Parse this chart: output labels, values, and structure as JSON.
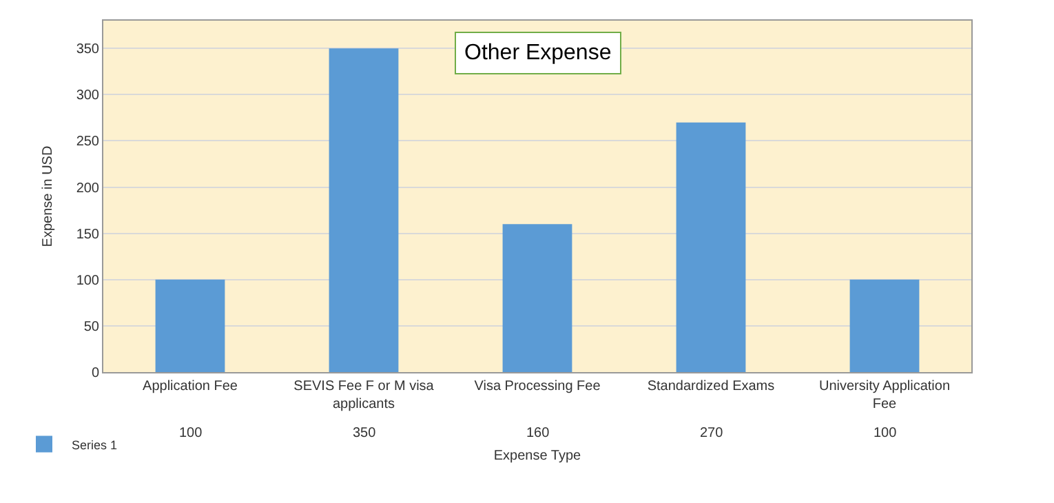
{
  "chart_data": {
    "type": "bar",
    "title": "Other Expense",
    "xlabel": "Expense Type",
    "ylabel": "Expense in USD",
    "categories": [
      "Application Fee",
      "SEVIS Fee F or M visa applicants",
      "Visa Processing Fee",
      "Standardized Exams",
      "University Application Fee"
    ],
    "series": [
      {
        "name": "Series 1",
        "color": "#5b9bd5",
        "values": [
          100,
          350,
          160,
          270,
          100
        ]
      }
    ],
    "ylim": [
      0,
      380
    ],
    "yticks": [
      0,
      50,
      100,
      150,
      200,
      250,
      300,
      350
    ],
    "grid": "y",
    "legend": "bottom left",
    "data_labels": true
  }
}
